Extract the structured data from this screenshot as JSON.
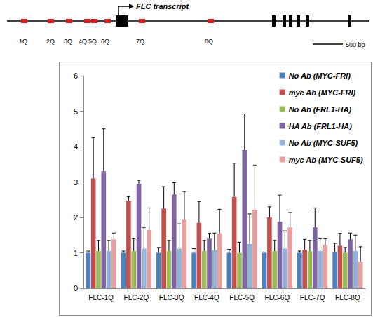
{
  "chart_data": {
    "type": "bar",
    "categories": [
      "FLC-1Q",
      "FLC-2Q",
      "FLC-3Q",
      "FLC-4Q",
      "FLC-5Q",
      "FLC-6Q",
      "FLC-7Q",
      "FLC-8Q"
    ],
    "ylim": [
      0,
      6
    ],
    "yticks": [
      0,
      1,
      2,
      3,
      4,
      5,
      6
    ],
    "grid": false,
    "legend": "upper right",
    "series": [
      {
        "name": "No Ab (MYC-FRI)",
        "color": "#4f81bd",
        "values": [
          1.0,
          1.0,
          1.0,
          1.0,
          1.0,
          1.0,
          1.0,
          1.02
        ],
        "error_up": [
          0.05,
          0.05,
          0.15,
          0.12,
          0.1,
          0.02,
          0.05,
          0.25
        ]
      },
      {
        "name": "myc Ab (MYC-FRI)",
        "color": "#c0504d",
        "values": [
          3.1,
          2.47,
          2.25,
          1.85,
          2.58,
          2.0,
          1.08,
          1.2
        ],
        "error_up": [
          1.15,
          0.12,
          0.62,
          0.6,
          0.95,
          0.3,
          0.3,
          0.35
        ]
      },
      {
        "name": "No Ab (FRL1-HA)",
        "color": "#9bbb59",
        "values": [
          1.05,
          1.05,
          1.05,
          1.05,
          1.0,
          1.05,
          1.05,
          1.0
        ],
        "error_up": [
          0.3,
          0.35,
          0.3,
          0.3,
          0.3,
          0.3,
          0.3,
          0.15
        ]
      },
      {
        "name": "HA Ab (FRL1-HA)",
        "color": "#8064a2",
        "values": [
          3.3,
          2.95,
          2.65,
          1.4,
          3.9,
          1.88,
          1.72,
          1.38
        ],
        "error_up": [
          1.2,
          0.1,
          0.33,
          0.15,
          1.02,
          0.75,
          0.55,
          0.18
        ]
      },
      {
        "name": "No Ab (MYC-SUF5)",
        "color": "#95b3d7",
        "values": [
          1.05,
          1.12,
          1.12,
          1.08,
          1.25,
          1.12,
          1.05,
          1.05
        ],
        "error_up": [
          0.3,
          0.6,
          0.7,
          0.48,
          0.85,
          0.5,
          0.35,
          0.45
        ]
      },
      {
        "name": "myc Ab (MYC-SUF5)",
        "color": "#e6a09f",
        "values": [
          1.38,
          1.65,
          1.95,
          1.55,
          2.22,
          1.72,
          1.22,
          0.75
        ],
        "error_up": [
          0.18,
          0.62,
          0.78,
          0.68,
          1.25,
          0.42,
          0.18,
          0.42
        ]
      }
    ]
  },
  "diagram": {
    "transcript_label": "FLC transcript",
    "primers": [
      "1Q",
      "2Q",
      "3Q",
      "4Q",
      "5Q",
      "6Q",
      "7Q",
      "8Q"
    ],
    "scale_bar": "500 bp"
  }
}
